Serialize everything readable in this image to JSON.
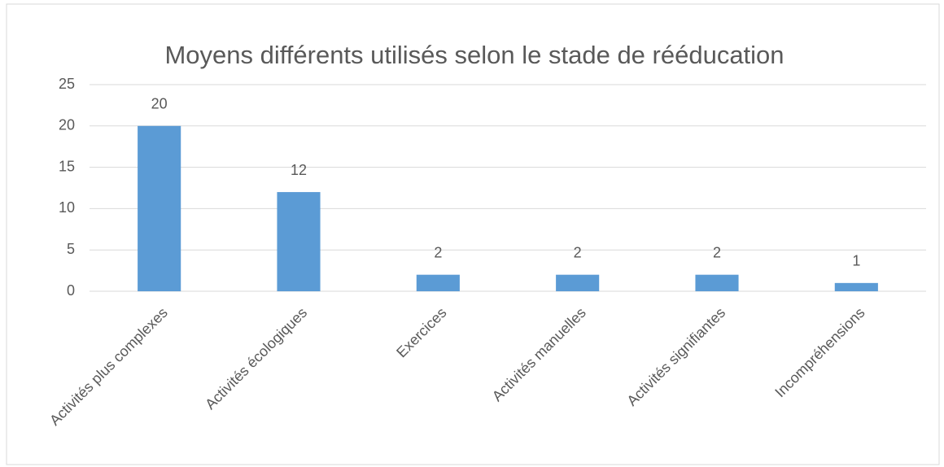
{
  "chart_data": {
    "type": "bar",
    "title": "Moyens différents utilisés selon le stade de rééducation",
    "categories": [
      "Activités plus complexes",
      "Activités écologiques",
      "Exercices",
      "Activités manuelles",
      "Activités signifiantes",
      "Incompréhensions"
    ],
    "values": [
      20,
      12,
      2,
      2,
      2,
      1
    ],
    "color": "#5b9bd5",
    "ylim": [
      0,
      25
    ],
    "yticks": [
      0,
      5,
      10,
      15,
      20,
      25
    ],
    "grid": true
  }
}
